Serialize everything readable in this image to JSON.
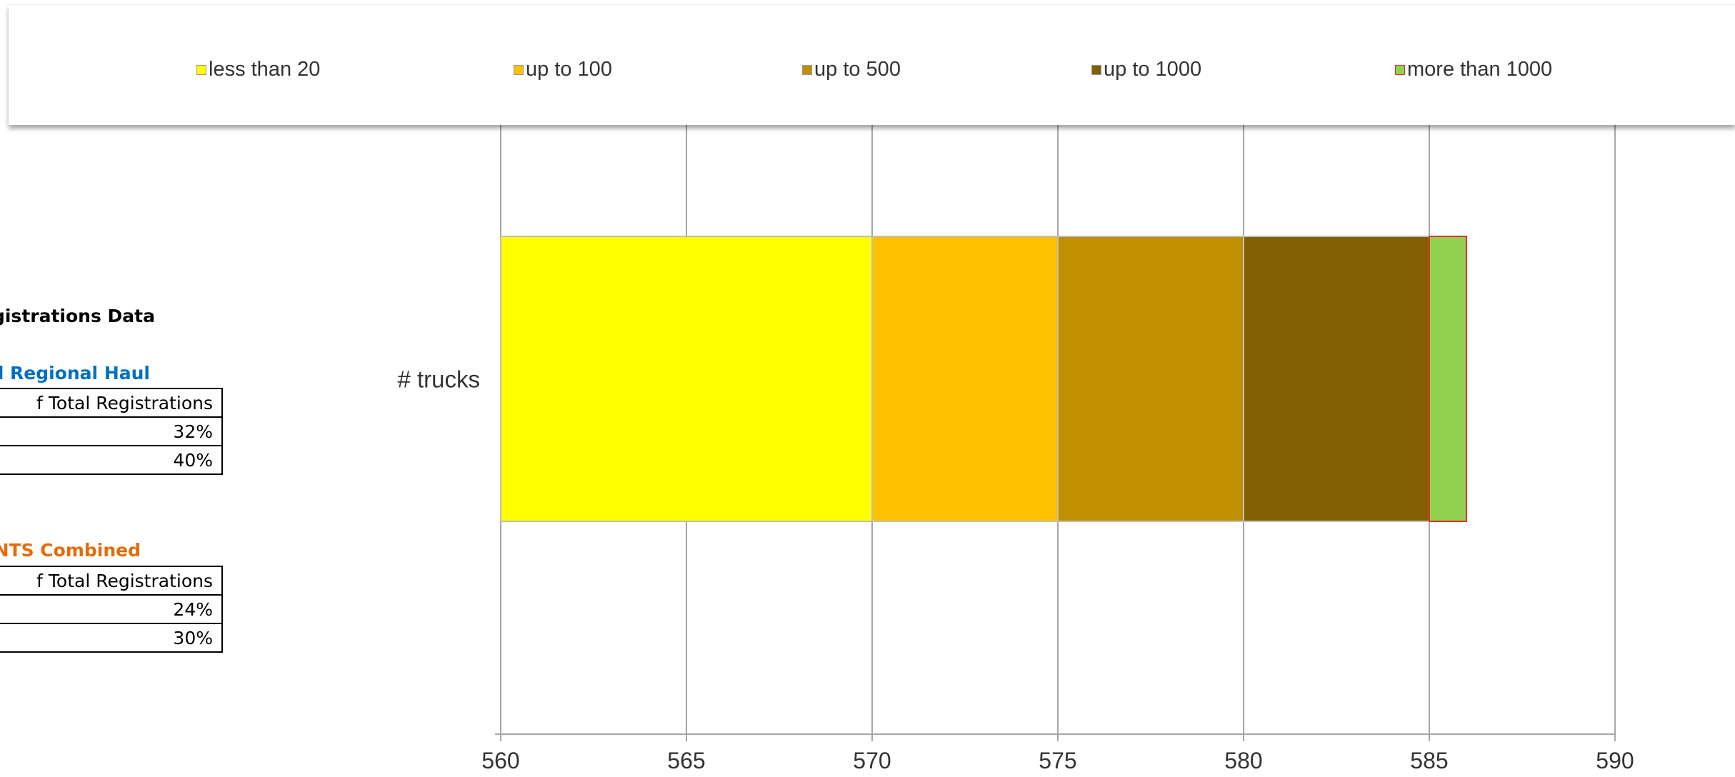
{
  "sheet": {
    "heading": "Registrations Data",
    "section1": {
      "title": "nd Regional Haul",
      "header": "f Total Registrations",
      "rows": [
        "32%",
        "40%"
      ]
    },
    "section2": {
      "title": "ENTS Combined",
      "header": "f Total Registrations",
      "rows": [
        "24%",
        "30%"
      ]
    }
  },
  "chart_data": {
    "type": "bar",
    "orientation": "horizontal",
    "stacked": true,
    "categories": [
      "# trucks"
    ],
    "xlim": [
      560,
      590
    ],
    "xticks": [
      560,
      565,
      570,
      575,
      580,
      585,
      590
    ],
    "grid": true,
    "legend_position": "top",
    "series": [
      {
        "name": "less than 20",
        "start": 560,
        "end": 570,
        "color": "#ffff00",
        "border": "#bfbfbf"
      },
      {
        "name": "up to 100",
        "start": 570,
        "end": 575,
        "color": "#ffc000",
        "border": "#bfbfbf"
      },
      {
        "name": "up to 500",
        "start": 575,
        "end": 580,
        "color": "#c09000",
        "border": "#bfbfbf"
      },
      {
        "name": "up to 1000",
        "start": 580,
        "end": 585,
        "color": "#806000",
        "border": "#bfbfbf"
      },
      {
        "name": "more than 1000",
        "start": 585,
        "end": 586,
        "color": "#92d050",
        "border": "#e53030"
      }
    ]
  }
}
